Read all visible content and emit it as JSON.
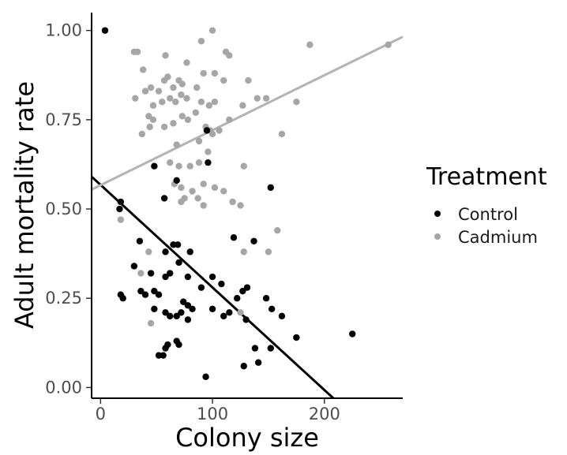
{
  "chart_data": {
    "type": "scatter",
    "xlabel": "Colony size",
    "ylabel": "Adult mortality rate",
    "xlim": [
      -8,
      270
    ],
    "ylim": [
      -0.03,
      1.05
    ],
    "x_ticks": [
      0,
      100,
      200
    ],
    "x_tick_labels": [
      "0",
      "100",
      "200"
    ],
    "y_ticks": [
      0,
      0.25,
      0.5,
      0.75,
      1.0
    ],
    "y_tick_labels": [
      "0.00",
      "0.25",
      "0.50",
      "0.75",
      "1.00"
    ],
    "grid": false,
    "legend": {
      "title": "Treatment",
      "position": "right",
      "entries": [
        "Control",
        "Cadmium"
      ]
    },
    "series": [
      {
        "name": "Control",
        "color": "#000000",
        "points": [
          [
            4,
            1.0
          ],
          [
            95,
            0.72
          ],
          [
            48,
            0.62
          ],
          [
            68,
            0.58
          ],
          [
            57,
            0.53
          ],
          [
            96,
            0.63
          ],
          [
            152,
            0.56
          ],
          [
            18,
            0.52
          ],
          [
            17,
            0.5
          ],
          [
            35,
            0.41
          ],
          [
            65,
            0.4
          ],
          [
            69,
            0.4
          ],
          [
            58,
            0.38
          ],
          [
            80,
            0.38
          ],
          [
            70,
            0.35
          ],
          [
            30,
            0.34
          ],
          [
            45,
            0.32
          ],
          [
            58,
            0.31
          ],
          [
            62,
            0.32
          ],
          [
            78,
            0.31
          ],
          [
            100,
            0.31
          ],
          [
            108,
            0.29
          ],
          [
            90,
            0.28
          ],
          [
            48,
            0.27
          ],
          [
            52,
            0.26
          ],
          [
            36,
            0.27
          ],
          [
            40,
            0.26
          ],
          [
            20,
            0.25
          ],
          [
            18,
            0.26
          ],
          [
            74,
            0.24
          ],
          [
            78,
            0.23
          ],
          [
            82,
            0.22
          ],
          [
            72,
            0.21
          ],
          [
            68,
            0.2
          ],
          [
            62,
            0.2
          ],
          [
            58,
            0.21
          ],
          [
            48,
            0.22
          ],
          [
            100,
            0.22
          ],
          [
            110,
            0.2
          ],
          [
            115,
            0.21
          ],
          [
            122,
            0.25
          ],
          [
            127,
            0.27
          ],
          [
            131,
            0.28
          ],
          [
            119,
            0.42
          ],
          [
            137,
            0.41
          ],
          [
            148,
            0.25
          ],
          [
            153,
            0.22
          ],
          [
            162,
            0.2
          ],
          [
            130,
            0.19
          ],
          [
            78,
            0.19
          ],
          [
            60,
            0.12
          ],
          [
            58,
            0.11
          ],
          [
            68,
            0.13
          ],
          [
            70,
            0.12
          ],
          [
            52,
            0.09
          ],
          [
            56,
            0.09
          ],
          [
            138,
            0.11
          ],
          [
            152,
            0.11
          ],
          [
            175,
            0.14
          ],
          [
            225,
            0.15
          ],
          [
            128,
            0.06
          ],
          [
            141,
            0.07
          ],
          [
            94,
            0.03
          ]
        ]
      },
      {
        "name": "Cadmium",
        "color": "#a6a6a6",
        "points": [
          [
            30,
            0.94
          ],
          [
            33,
            0.94
          ],
          [
            38,
            0.89
          ],
          [
            58,
            0.93
          ],
          [
            77,
            0.91
          ],
          [
            90,
            0.97
          ],
          [
            100,
            1.0
          ],
          [
            112,
            0.94
          ],
          [
            115,
            0.93
          ],
          [
            102,
            0.88
          ],
          [
            92,
            0.88
          ],
          [
            86,
            0.84
          ],
          [
            65,
            0.84
          ],
          [
            70,
            0.86
          ],
          [
            73,
            0.85
          ],
          [
            57,
            0.86
          ],
          [
            60,
            0.87
          ],
          [
            52,
            0.83
          ],
          [
            45,
            0.84
          ],
          [
            40,
            0.83
          ],
          [
            31,
            0.81
          ],
          [
            47,
            0.79
          ],
          [
            55,
            0.8
          ],
          [
            62,
            0.81
          ],
          [
            67,
            0.8
          ],
          [
            72,
            0.82
          ],
          [
            77,
            0.81
          ],
          [
            90,
            0.8
          ],
          [
            97,
            0.79
          ],
          [
            102,
            0.8
          ],
          [
            110,
            0.86
          ],
          [
            132,
            0.86
          ],
          [
            127,
            0.79
          ],
          [
            140,
            0.81
          ],
          [
            148,
            0.81
          ],
          [
            175,
            0.8
          ],
          [
            187,
            0.96
          ],
          [
            257,
            0.96
          ],
          [
            43,
            0.76
          ],
          [
            47,
            0.75
          ],
          [
            37,
            0.71
          ],
          [
            44,
            0.73
          ],
          [
            57,
            0.73
          ],
          [
            65,
            0.74
          ],
          [
            73,
            0.76
          ],
          [
            78,
            0.75
          ],
          [
            85,
            0.77
          ],
          [
            94,
            0.73
          ],
          [
            98,
            0.72
          ],
          [
            106,
            0.72
          ],
          [
            115,
            0.75
          ],
          [
            88,
            0.69
          ],
          [
            96,
            0.66
          ],
          [
            100,
            0.71
          ],
          [
            162,
            0.71
          ],
          [
            68,
            0.68
          ],
          [
            62,
            0.63
          ],
          [
            70,
            0.62
          ],
          [
            80,
            0.62
          ],
          [
            88,
            0.63
          ],
          [
            128,
            0.62
          ],
          [
            66,
            0.57
          ],
          [
            72,
            0.56
          ],
          [
            75,
            0.53
          ],
          [
            82,
            0.55
          ],
          [
            92,
            0.57
          ],
          [
            102,
            0.56
          ],
          [
            110,
            0.55
          ],
          [
            72,
            0.52
          ],
          [
            87,
            0.53
          ],
          [
            92,
            0.51
          ],
          [
            118,
            0.52
          ],
          [
            125,
            0.51
          ],
          [
            158,
            0.44
          ],
          [
            18,
            0.47
          ],
          [
            36,
            0.32
          ],
          [
            43,
            0.38
          ],
          [
            128,
            0.38
          ],
          [
            150,
            0.38
          ],
          [
            125,
            0.21
          ],
          [
            45,
            0.18
          ]
        ]
      }
    ],
    "trend_lines": [
      {
        "series": "Control",
        "color": "#000000",
        "from": [
          -8,
          0.5905
        ],
        "to": [
          208,
          -0.03
        ]
      },
      {
        "series": "Cadmium",
        "color": "#b3b3b3",
        "from": [
          -8,
          0.5545
        ],
        "to": [
          270,
          0.9823
        ]
      }
    ]
  }
}
